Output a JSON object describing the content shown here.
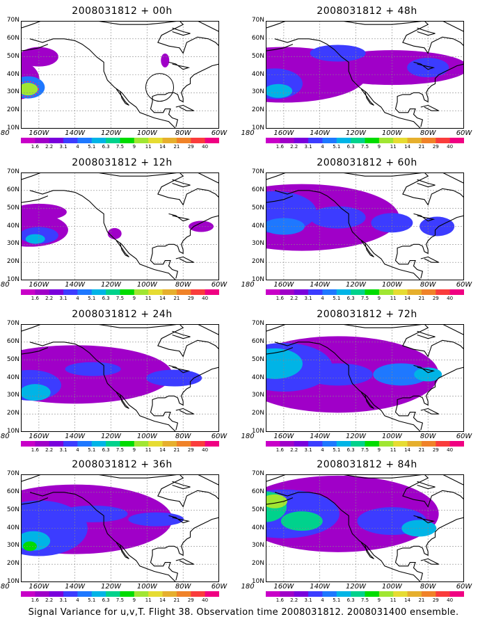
{
  "panels": [
    {
      "title": "2008031812 + 00h",
      "lead_hours": 0
    },
    {
      "title": "2008031812 + 48h",
      "lead_hours": 48
    },
    {
      "title": "2008031812 + 12h",
      "lead_hours": 12
    },
    {
      "title": "2008031812 + 60h",
      "lead_hours": 60
    },
    {
      "title": "2008031812 + 24h",
      "lead_hours": 24
    },
    {
      "title": "2008031812 + 72h",
      "lead_hours": 72
    },
    {
      "title": "2008031812 + 36h",
      "lead_hours": 36
    },
    {
      "title": "2008031812 + 84h",
      "lead_hours": 84
    }
  ],
  "latitude_labels": [
    "70N",
    "60N",
    "50N",
    "40N",
    "30N",
    "20N",
    "10N"
  ],
  "longitude_labels": [
    "180",
    "160W",
    "140W",
    "120W",
    "100W",
    "80W",
    "60W"
  ],
  "colorbar": {
    "labels": [
      "1.6",
      "2.2",
      "3.1",
      "4",
      "5.1",
      "6.3",
      "7.5",
      "9",
      "11",
      "14",
      "21",
      "29",
      "40"
    ],
    "colors": [
      "#a000c8",
      "#7a00dc",
      "#3c3cff",
      "#1e78ff",
      "#00b4e6",
      "#00d28c",
      "#00dc00",
      "#a0e632",
      "#e6dc32",
      "#e6af2d",
      "#f08228",
      "#fa3c3c",
      "#f00082"
    ]
  },
  "footer": "Signal Variance for u,v,T. Flight 38. Observation time 2008031812. 2008031400 ensemble."
}
